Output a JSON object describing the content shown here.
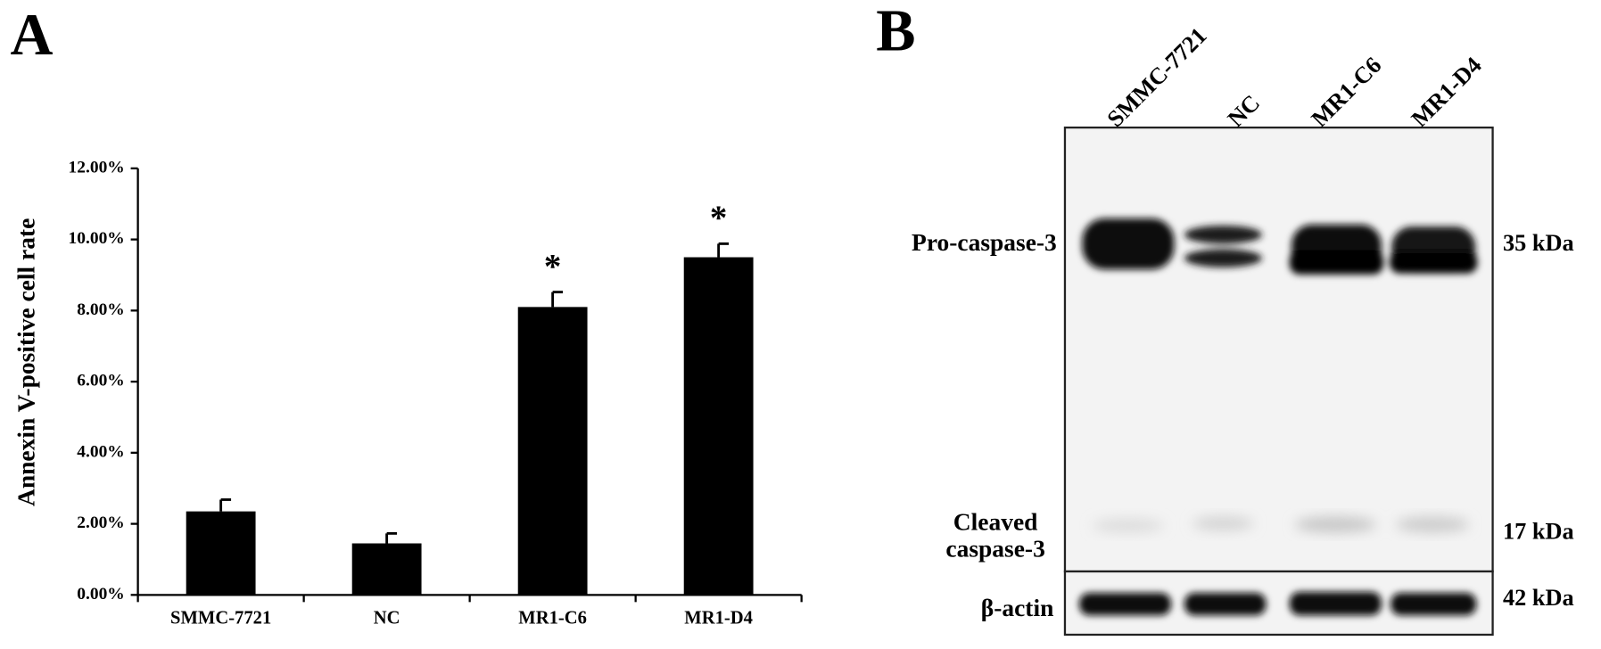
{
  "chart_data": {
    "type": "bar",
    "panel_label": "A",
    "y_label": "Annexin V-positive cell rate",
    "categories": [
      "SMMC-7721",
      "NC",
      "MR1-C6",
      "MR1-D4"
    ],
    "values": [
      2.35,
      1.45,
      8.1,
      9.5
    ],
    "errors": [
      0.33,
      0.28,
      0.42,
      0.38
    ],
    "significance": [
      null,
      null,
      "*",
      "*"
    ],
    "color": "#000000",
    "ylim": [
      0,
      12
    ],
    "yticks": [
      {
        "value": 0,
        "label": "0.00%"
      },
      {
        "value": 2,
        "label": "2.00%"
      },
      {
        "value": 4,
        "label": "4.00%"
      },
      {
        "value": 6,
        "label": "6.00%"
      },
      {
        "value": 8,
        "label": "8.00%"
      },
      {
        "value": 10,
        "label": "10.00%"
      },
      {
        "value": 12,
        "label": "12.00%"
      }
    ],
    "grid": false
  },
  "blot": {
    "panel_label": "B",
    "lanes": [
      "SMMC-7721",
      "NC",
      "MR1-C6",
      "MR1-D4"
    ],
    "rows": [
      "Pro-caspase-3",
      "Cleaved",
      "caspase-3",
      "β-actin"
    ],
    "sizes": [
      "35 kDa",
      "17 kDa",
      "42 kDa"
    ]
  }
}
